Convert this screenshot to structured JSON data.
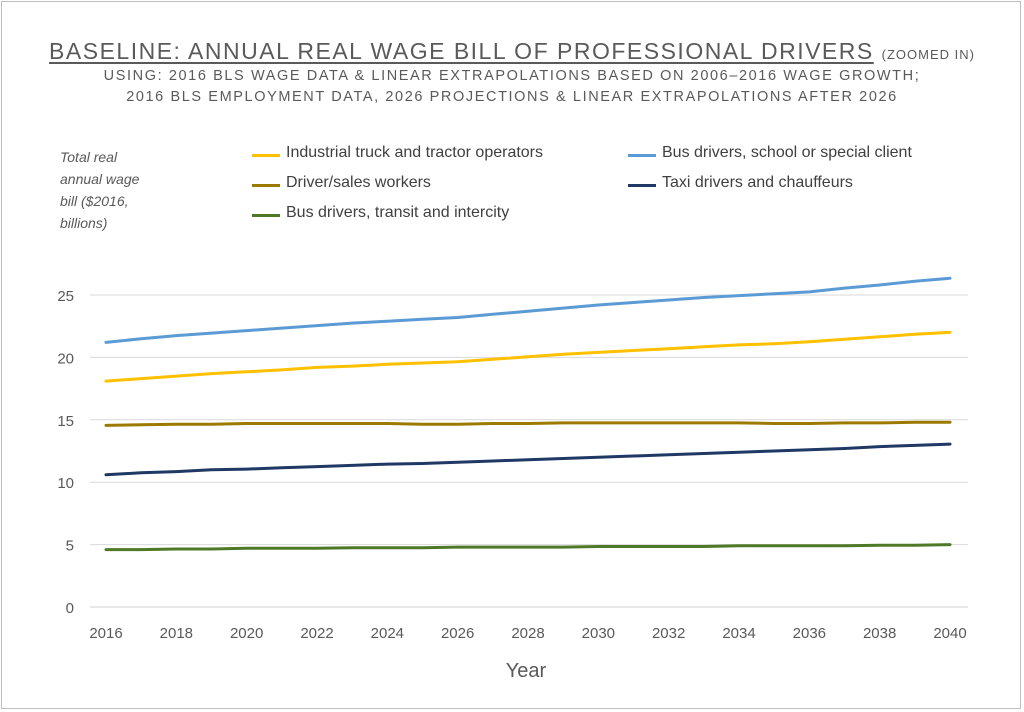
{
  "chart_data": {
    "type": "line",
    "title": "BASELINE: ANNUAL REAL WAGE BILL OF PROFESSIONAL DRIVERS",
    "title_suffix": "(ZOOMED IN)",
    "subtitle_lines": [
      "USING: 2016 BLS WAGE DATA & LINEAR EXTRAPOLATIONS BASED ON 2006–2016 WAGE GROWTH;",
      "2016 BLS EMPLOYMENT DATA, 2026 PROJECTIONS & LINEAR EXTRAPOLATIONS AFTER 2026"
    ],
    "xlabel": "Year",
    "ylabel": "Total real annual wage bill ($2016, billions)",
    "xlim": [
      2016,
      2040
    ],
    "ylim": [
      0,
      25
    ],
    "x_ticks": [
      "2016",
      "2018",
      "2020",
      "2022",
      "2024",
      "2026",
      "2028",
      "2030",
      "2032",
      "2034",
      "2036",
      "2038",
      "2040"
    ],
    "y_ticks": [
      "0",
      "5",
      "10",
      "15",
      "20",
      "25"
    ],
    "grid": "horizontal",
    "legend_position": "top",
    "x": [
      2016,
      2017,
      2018,
      2019,
      2020,
      2021,
      2022,
      2023,
      2024,
      2025,
      2026,
      2027,
      2028,
      2029,
      2030,
      2031,
      2032,
      2033,
      2034,
      2035,
      2036,
      2037,
      2038,
      2039,
      2040
    ],
    "series": [
      {
        "name": "Industrial truck and tractor operators",
        "color": "#FFC000",
        "values": [
          18.1,
          18.3,
          18.5,
          18.7,
          18.85,
          19.0,
          19.2,
          19.3,
          19.45,
          19.55,
          19.65,
          19.85,
          20.05,
          20.25,
          20.4,
          20.55,
          20.7,
          20.85,
          21.0,
          21.1,
          21.25,
          21.45,
          21.65,
          21.85,
          22.0
        ]
      },
      {
        "name": "Bus drivers, school or special client",
        "color": "#5B9BD5",
        "values": [
          21.2,
          21.5,
          21.75,
          21.95,
          22.15,
          22.35,
          22.55,
          22.75,
          22.9,
          23.05,
          23.2,
          23.45,
          23.7,
          23.95,
          24.2,
          24.4,
          24.6,
          24.8,
          24.95,
          25.1,
          25.25,
          25.55,
          25.8,
          26.1,
          26.35
        ]
      },
      {
        "name": "Driver/sales workers",
        "color": "#9C7A00",
        "values": [
          14.55,
          14.6,
          14.65,
          14.65,
          14.7,
          14.7,
          14.7,
          14.7,
          14.7,
          14.65,
          14.65,
          14.7,
          14.7,
          14.75,
          14.75,
          14.75,
          14.75,
          14.75,
          14.75,
          14.7,
          14.7,
          14.75,
          14.75,
          14.8,
          14.8
        ]
      },
      {
        "name": "Taxi drivers and chauffeurs",
        "color": "#203864",
        "values": [
          10.6,
          10.75,
          10.85,
          11.0,
          11.05,
          11.15,
          11.25,
          11.35,
          11.45,
          11.5,
          11.6,
          11.7,
          11.8,
          11.9,
          12.0,
          12.1,
          12.2,
          12.3,
          12.4,
          12.5,
          12.6,
          12.7,
          12.85,
          12.95,
          13.05
        ]
      },
      {
        "name": "Bus drivers, transit and intercity",
        "color": "#4E7A27",
        "values": [
          4.6,
          4.6,
          4.65,
          4.65,
          4.7,
          4.7,
          4.7,
          4.75,
          4.75,
          4.75,
          4.8,
          4.8,
          4.8,
          4.8,
          4.85,
          4.85,
          4.85,
          4.85,
          4.9,
          4.9,
          4.9,
          4.9,
          4.95,
          4.95,
          5.0
        ]
      }
    ]
  }
}
